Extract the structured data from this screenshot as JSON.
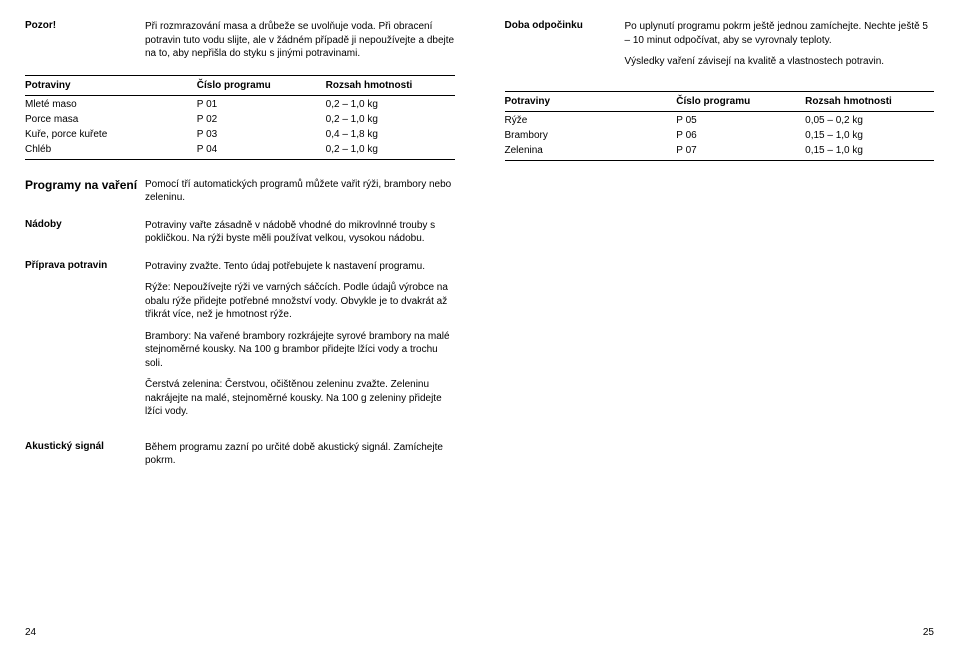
{
  "left": {
    "warning_label": "Pozor!",
    "warning_text": "Při rozmrazování masa a drůbeže se uvolňuje voda. Při obracení potravin tuto vodu slijte, ale v žádném případě ji nepoužívejte a dbejte na to, aby nepřišla do styku s jinými potravinami.",
    "table": {
      "headers": [
        "Potraviny",
        "Číslo programu",
        "Rozsah hmotnosti"
      ],
      "rows": [
        [
          "Mleté maso",
          "P 01",
          "0,2 – 1,0 kg"
        ],
        [
          "Porce masa",
          "P 02",
          "0,2 – 1,0 kg"
        ],
        [
          "Kuře, porce kuřete",
          "P 03",
          "0,4 – 1,8 kg"
        ],
        [
          "Chléb",
          "P 04",
          "0,2 – 1,0 kg"
        ]
      ]
    },
    "programs_title": "Programy na vaření",
    "programs_text": "Pomocí tří automatických programů můžete vařit rýži, brambory nebo zeleninu.",
    "dishes_label": "Nádoby",
    "dishes_text": "Potraviny vařte zásadně v nádobě vhodné do mikrovlnné trouby s pokličkou. Na rýži byste měli používat velkou, vysokou nádobu.",
    "prep_label": "Příprava potravin",
    "prep_p1": "Potraviny zvažte. Tento údaj potřebujete k nastavení programu.",
    "prep_p2": "Rýže: Nepoužívejte rýži ve varných sáčcích. Podle údajů výrobce na obalu rýže přidejte potřebné množství vody. Obvykle je to dvakrát až třikrát více, než je hmotnost rýže.",
    "prep_p3": "Brambory: Na vařené brambory rozkrájejte syrové brambory na malé stejnoměrné kousky. Na 100 g brambor přidejte lžíci vody a trochu soli.",
    "prep_p4": "Čerstvá zelenina: Čerstvou, očištěnou zeleninu zvažte. Zeleninu nakrájejte na malé, stejnoměrné kousky. Na 100 g zeleniny přidejte lžíci vody.",
    "signal_label": "Akustický signál",
    "signal_text": "Během programu zazní po určité době akustický signál. Zamíchejte pokrm.",
    "page_num": "24"
  },
  "right": {
    "rest_label": "Doba odpočinku",
    "rest_p1": "Po uplynutí programu pokrm ještě jednou zamíchejte. Nechte ještě 5 – 10 minut odpočívat, aby se vyrovnaly teploty.",
    "rest_p2": "Výsledky vaření závisejí na kvalitě a vlastnostech potravin.",
    "table": {
      "headers": [
        "Potraviny",
        "Číslo programu",
        "Rozsah hmotnosti"
      ],
      "rows": [
        [
          "Rýže",
          "P 05",
          "0,05 – 0,2 kg"
        ],
        [
          "Brambory",
          "P 06",
          "0,15 – 1,0 kg"
        ],
        [
          "Zelenina",
          "P 07",
          "0,15 – 1,0 kg"
        ]
      ]
    },
    "page_num": "25"
  }
}
